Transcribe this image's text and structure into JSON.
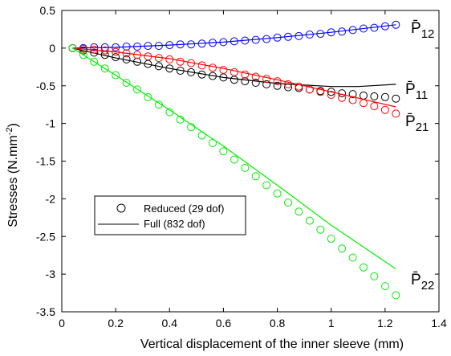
{
  "chart_data": {
    "type": "scatter",
    "xlabel": "Vertical displacement of the inner sleeve (mm)",
    "ylabel": "Stresses (N.mm",
    "ylabel_sup": "-2",
    "ylabel_close": ")",
    "xlim": [
      0,
      1.4
    ],
    "ylim": [
      -3.5,
      0.5
    ],
    "xticks": [
      0,
      0.2,
      0.4,
      0.6,
      0.8,
      1,
      1.2,
      1.4
    ],
    "xtick_labels": [
      "0",
      "0.2",
      "0.4",
      "0.6",
      "0.8",
      "1",
      "1.2",
      "1.4"
    ],
    "yticks": [
      0.5,
      0,
      -0.5,
      -1,
      -1.5,
      -2,
      -2.5,
      -3,
      -3.5
    ],
    "ytick_labels": [
      "0.5",
      "0",
      "-0.5",
      "-1",
      "-1.5",
      "-2",
      "-2.5",
      "-3",
      "-3.5"
    ],
    "grid": false,
    "legend_position": "lower-left",
    "legend": [
      {
        "label": "Reduced (29 dof)",
        "marker": "circle"
      },
      {
        "label": "Full (832 dof)",
        "marker": "line"
      }
    ],
    "series": [
      {
        "name": "P12",
        "label_main": "P̄",
        "label_sub": "12",
        "color": "#0000ff",
        "line_x": [
          0.04,
          0.2,
          0.4,
          0.6,
          0.8,
          1.0,
          1.24
        ],
        "line_y": [
          0.0,
          0.01,
          0.04,
          0.08,
          0.14,
          0.21,
          0.31
        ],
        "markers_x": [
          0.04,
          0.08,
          0.12,
          0.16,
          0.2,
          0.24,
          0.28,
          0.32,
          0.36,
          0.4,
          0.44,
          0.48,
          0.52,
          0.56,
          0.6,
          0.64,
          0.68,
          0.72,
          0.76,
          0.8,
          0.84,
          0.88,
          0.92,
          0.96,
          1.0,
          1.04,
          1.08,
          1.12,
          1.16,
          1.2,
          1.24
        ],
        "markers_y": [
          0.0,
          0.0,
          0.01,
          0.01,
          0.01,
          0.02,
          0.02,
          0.03,
          0.03,
          0.04,
          0.05,
          0.05,
          0.06,
          0.07,
          0.08,
          0.09,
          0.1,
          0.11,
          0.12,
          0.14,
          0.15,
          0.16,
          0.18,
          0.19,
          0.21,
          0.22,
          0.24,
          0.26,
          0.27,
          0.29,
          0.31
        ]
      },
      {
        "name": "P11",
        "label_main": "P̄",
        "label_sub": "11",
        "color": "#000000",
        "line_x": [
          0.04,
          0.2,
          0.4,
          0.6,
          0.8,
          1.0,
          1.1,
          1.24
        ],
        "line_y": [
          0.0,
          -0.13,
          -0.27,
          -0.39,
          -0.47,
          -0.51,
          -0.51,
          -0.48
        ],
        "markers_x": [
          0.04,
          0.08,
          0.12,
          0.16,
          0.2,
          0.24,
          0.28,
          0.32,
          0.36,
          0.4,
          0.44,
          0.48,
          0.52,
          0.56,
          0.6,
          0.64,
          0.68,
          0.72,
          0.76,
          0.8,
          0.84,
          0.88,
          0.92,
          0.96,
          1.0,
          1.04,
          1.08,
          1.12,
          1.16,
          1.2,
          1.24
        ],
        "markers_y": [
          0.0,
          -0.03,
          -0.06,
          -0.09,
          -0.12,
          -0.15,
          -0.18,
          -0.21,
          -0.24,
          -0.27,
          -0.3,
          -0.32,
          -0.35,
          -0.37,
          -0.39,
          -0.42,
          -0.44,
          -0.46,
          -0.48,
          -0.5,
          -0.52,
          -0.53,
          -0.55,
          -0.57,
          -0.58,
          -0.6,
          -0.61,
          -0.63,
          -0.64,
          -0.65,
          -0.67
        ]
      },
      {
        "name": "P21",
        "label_main": "P̄",
        "label_sub": "21",
        "color": "#ff0000",
        "line_x": [
          0.04,
          0.2,
          0.4,
          0.6,
          0.8,
          1.0,
          1.24
        ],
        "line_y": [
          0.0,
          -0.05,
          -0.14,
          -0.27,
          -0.42,
          -0.58,
          -0.78
        ],
        "markers_x": [
          0.04,
          0.08,
          0.12,
          0.16,
          0.2,
          0.24,
          0.28,
          0.32,
          0.36,
          0.4,
          0.44,
          0.48,
          0.52,
          0.56,
          0.6,
          0.64,
          0.68,
          0.72,
          0.76,
          0.8,
          0.84,
          0.88,
          0.92,
          0.96,
          1.0,
          1.04,
          1.08,
          1.12,
          1.16,
          1.2,
          1.24
        ],
        "markers_y": [
          0.0,
          -0.01,
          -0.02,
          -0.03,
          -0.05,
          -0.07,
          -0.09,
          -0.11,
          -0.13,
          -0.15,
          -0.18,
          -0.2,
          -0.23,
          -0.26,
          -0.29,
          -0.32,
          -0.35,
          -0.38,
          -0.41,
          -0.44,
          -0.48,
          -0.51,
          -0.55,
          -0.58,
          -0.62,
          -0.66,
          -0.69,
          -0.73,
          -0.77,
          -0.82,
          -0.87
        ]
      },
      {
        "name": "P22",
        "label_main": "P̄",
        "label_sub": "22",
        "color": "#00ee00",
        "line_x": [
          0.04,
          0.2,
          0.4,
          0.6,
          0.8,
          1.0,
          1.24
        ],
        "line_y": [
          0.0,
          -0.36,
          -0.82,
          -1.3,
          -1.82,
          -2.35,
          -2.93
        ],
        "markers_x": [
          0.04,
          0.08,
          0.12,
          0.16,
          0.2,
          0.24,
          0.28,
          0.32,
          0.36,
          0.4,
          0.44,
          0.48,
          0.52,
          0.56,
          0.6,
          0.64,
          0.68,
          0.72,
          0.76,
          0.8,
          0.84,
          0.88,
          0.92,
          0.96,
          1.0,
          1.04,
          1.08,
          1.12,
          1.16,
          1.2,
          1.24
        ],
        "markers_y": [
          0.0,
          -0.09,
          -0.18,
          -0.27,
          -0.36,
          -0.46,
          -0.55,
          -0.65,
          -0.75,
          -0.85,
          -0.95,
          -1.05,
          -1.16,
          -1.26,
          -1.37,
          -1.48,
          -1.59,
          -1.7,
          -1.82,
          -1.93,
          -2.05,
          -2.17,
          -2.29,
          -2.41,
          -2.53,
          -2.66,
          -2.78,
          -2.91,
          -3.03,
          -3.16,
          -3.28
        ]
      }
    ]
  }
}
